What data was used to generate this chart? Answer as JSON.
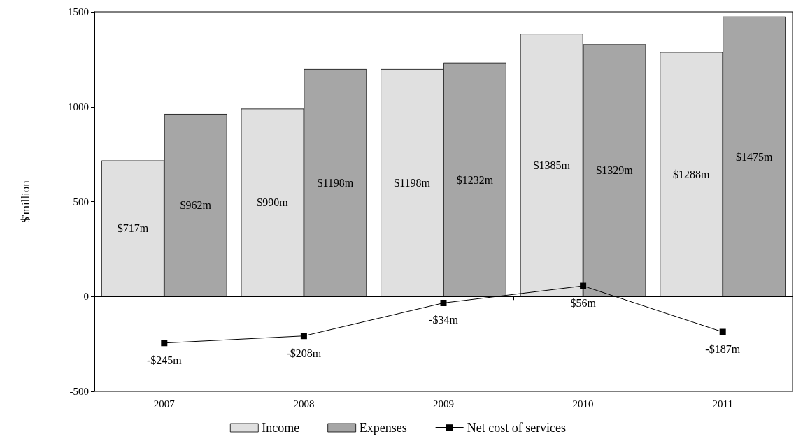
{
  "chart_data": {
    "type": "bar",
    "ylabel": "$'million",
    "categories": [
      "2007",
      "2008",
      "2009",
      "2010",
      "2011"
    ],
    "series": [
      {
        "name": "Income",
        "color": "#e0e0e0",
        "values": [
          717,
          990,
          1198,
          1385,
          1288
        ],
        "value_labels": [
          "$717m",
          "$990m",
          "$1198m",
          "$1385m",
          "$1288m"
        ]
      },
      {
        "name": "Expenses",
        "color": "#a6a6a6",
        "values": [
          962,
          1198,
          1232,
          1329,
          1475
        ],
        "value_labels": [
          "$962m",
          "$1198m",
          "$1232m",
          "$1329m",
          "$1475m"
        ]
      },
      {
        "name": "Net cost of services",
        "type": "line",
        "color": "#000000",
        "values": [
          -245,
          -208,
          -34,
          56,
          -187
        ],
        "value_labels": [
          "-$245m",
          "-$208m",
          "-$34m",
          "$56m",
          "-$187m"
        ]
      }
    ],
    "ylim": [
      -500,
      1500
    ],
    "yticks": [
      -500,
      0,
      500,
      1000,
      1500
    ],
    "legend": "bottom",
    "marker": "square",
    "line_style": "solid"
  }
}
